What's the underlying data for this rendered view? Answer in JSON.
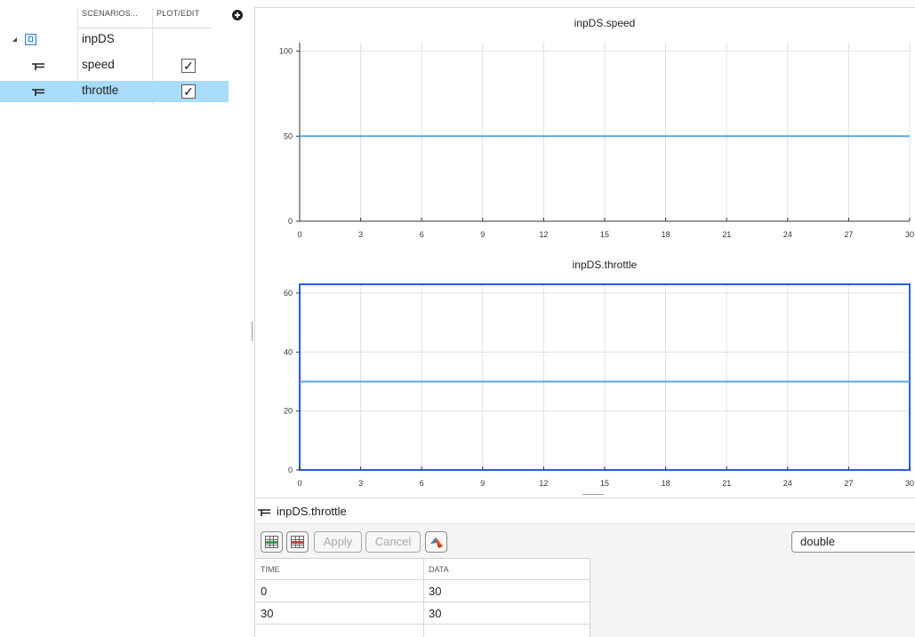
{
  "tree": {
    "columns": {
      "scenarios": "SCENARIOS...",
      "plot_edit": "PLOT/EDIT"
    },
    "dataset": {
      "name": "inpDS",
      "expand_icon": "triangle-expanded-icon",
      "icon": "dataset-cube-icon"
    },
    "signals": [
      {
        "name": "speed",
        "plot": true,
        "checkmark": "✓",
        "selected": false,
        "icon": "signal-icon"
      },
      {
        "name": "throttle",
        "plot": true,
        "checkmark": "✓",
        "selected": true,
        "icon": "signal-icon"
      }
    ],
    "add_icon": "plus-circle-icon",
    "selection_color": "#a9dbfa"
  },
  "chart_data": [
    {
      "type": "line",
      "title": "inpDS.speed",
      "xlabel": "",
      "ylabel": "",
      "xlim": [
        0,
        30
      ],
      "ylim": [
        0,
        105
      ],
      "xticks": [
        0,
        3,
        6,
        9,
        12,
        15,
        18,
        21,
        24,
        27,
        30
      ],
      "yticks": [
        0,
        50,
        100
      ],
      "grid": true,
      "selected": false,
      "series": [
        {
          "x": [
            0,
            30
          ],
          "y": [
            50,
            50
          ],
          "color": "#5aa7dd"
        }
      ]
    },
    {
      "type": "line",
      "title": "inpDS.throttle",
      "xlabel": "",
      "ylabel": "",
      "xlim": [
        0,
        30
      ],
      "ylim": [
        0,
        63
      ],
      "xticks": [
        0,
        3,
        6,
        9,
        12,
        15,
        18,
        21,
        24,
        27,
        30
      ],
      "yticks": [
        0,
        20,
        40,
        60
      ],
      "grid": true,
      "selected": true,
      "series": [
        {
          "x": [
            0,
            30
          ],
          "y": [
            30,
            30
          ],
          "color": "#5aa7dd"
        }
      ]
    }
  ],
  "colors": {
    "selected_axes_border": "#2a5be8",
    "line": "#5aa7dd"
  },
  "editor": {
    "signal_label": "inpDS.throttle",
    "toolbar": {
      "insert_row_icon": "insert-row-icon",
      "delete_row_icon": "delete-row-icon",
      "apply_label": "Apply",
      "cancel_label": "Cancel",
      "matlab_icon": "matlab-logo-icon",
      "data_type": "double"
    },
    "table": {
      "headers": [
        "TIME",
        "DATA"
      ],
      "rows": [
        [
          "0",
          "30"
        ],
        [
          "30",
          "30"
        ]
      ]
    }
  }
}
